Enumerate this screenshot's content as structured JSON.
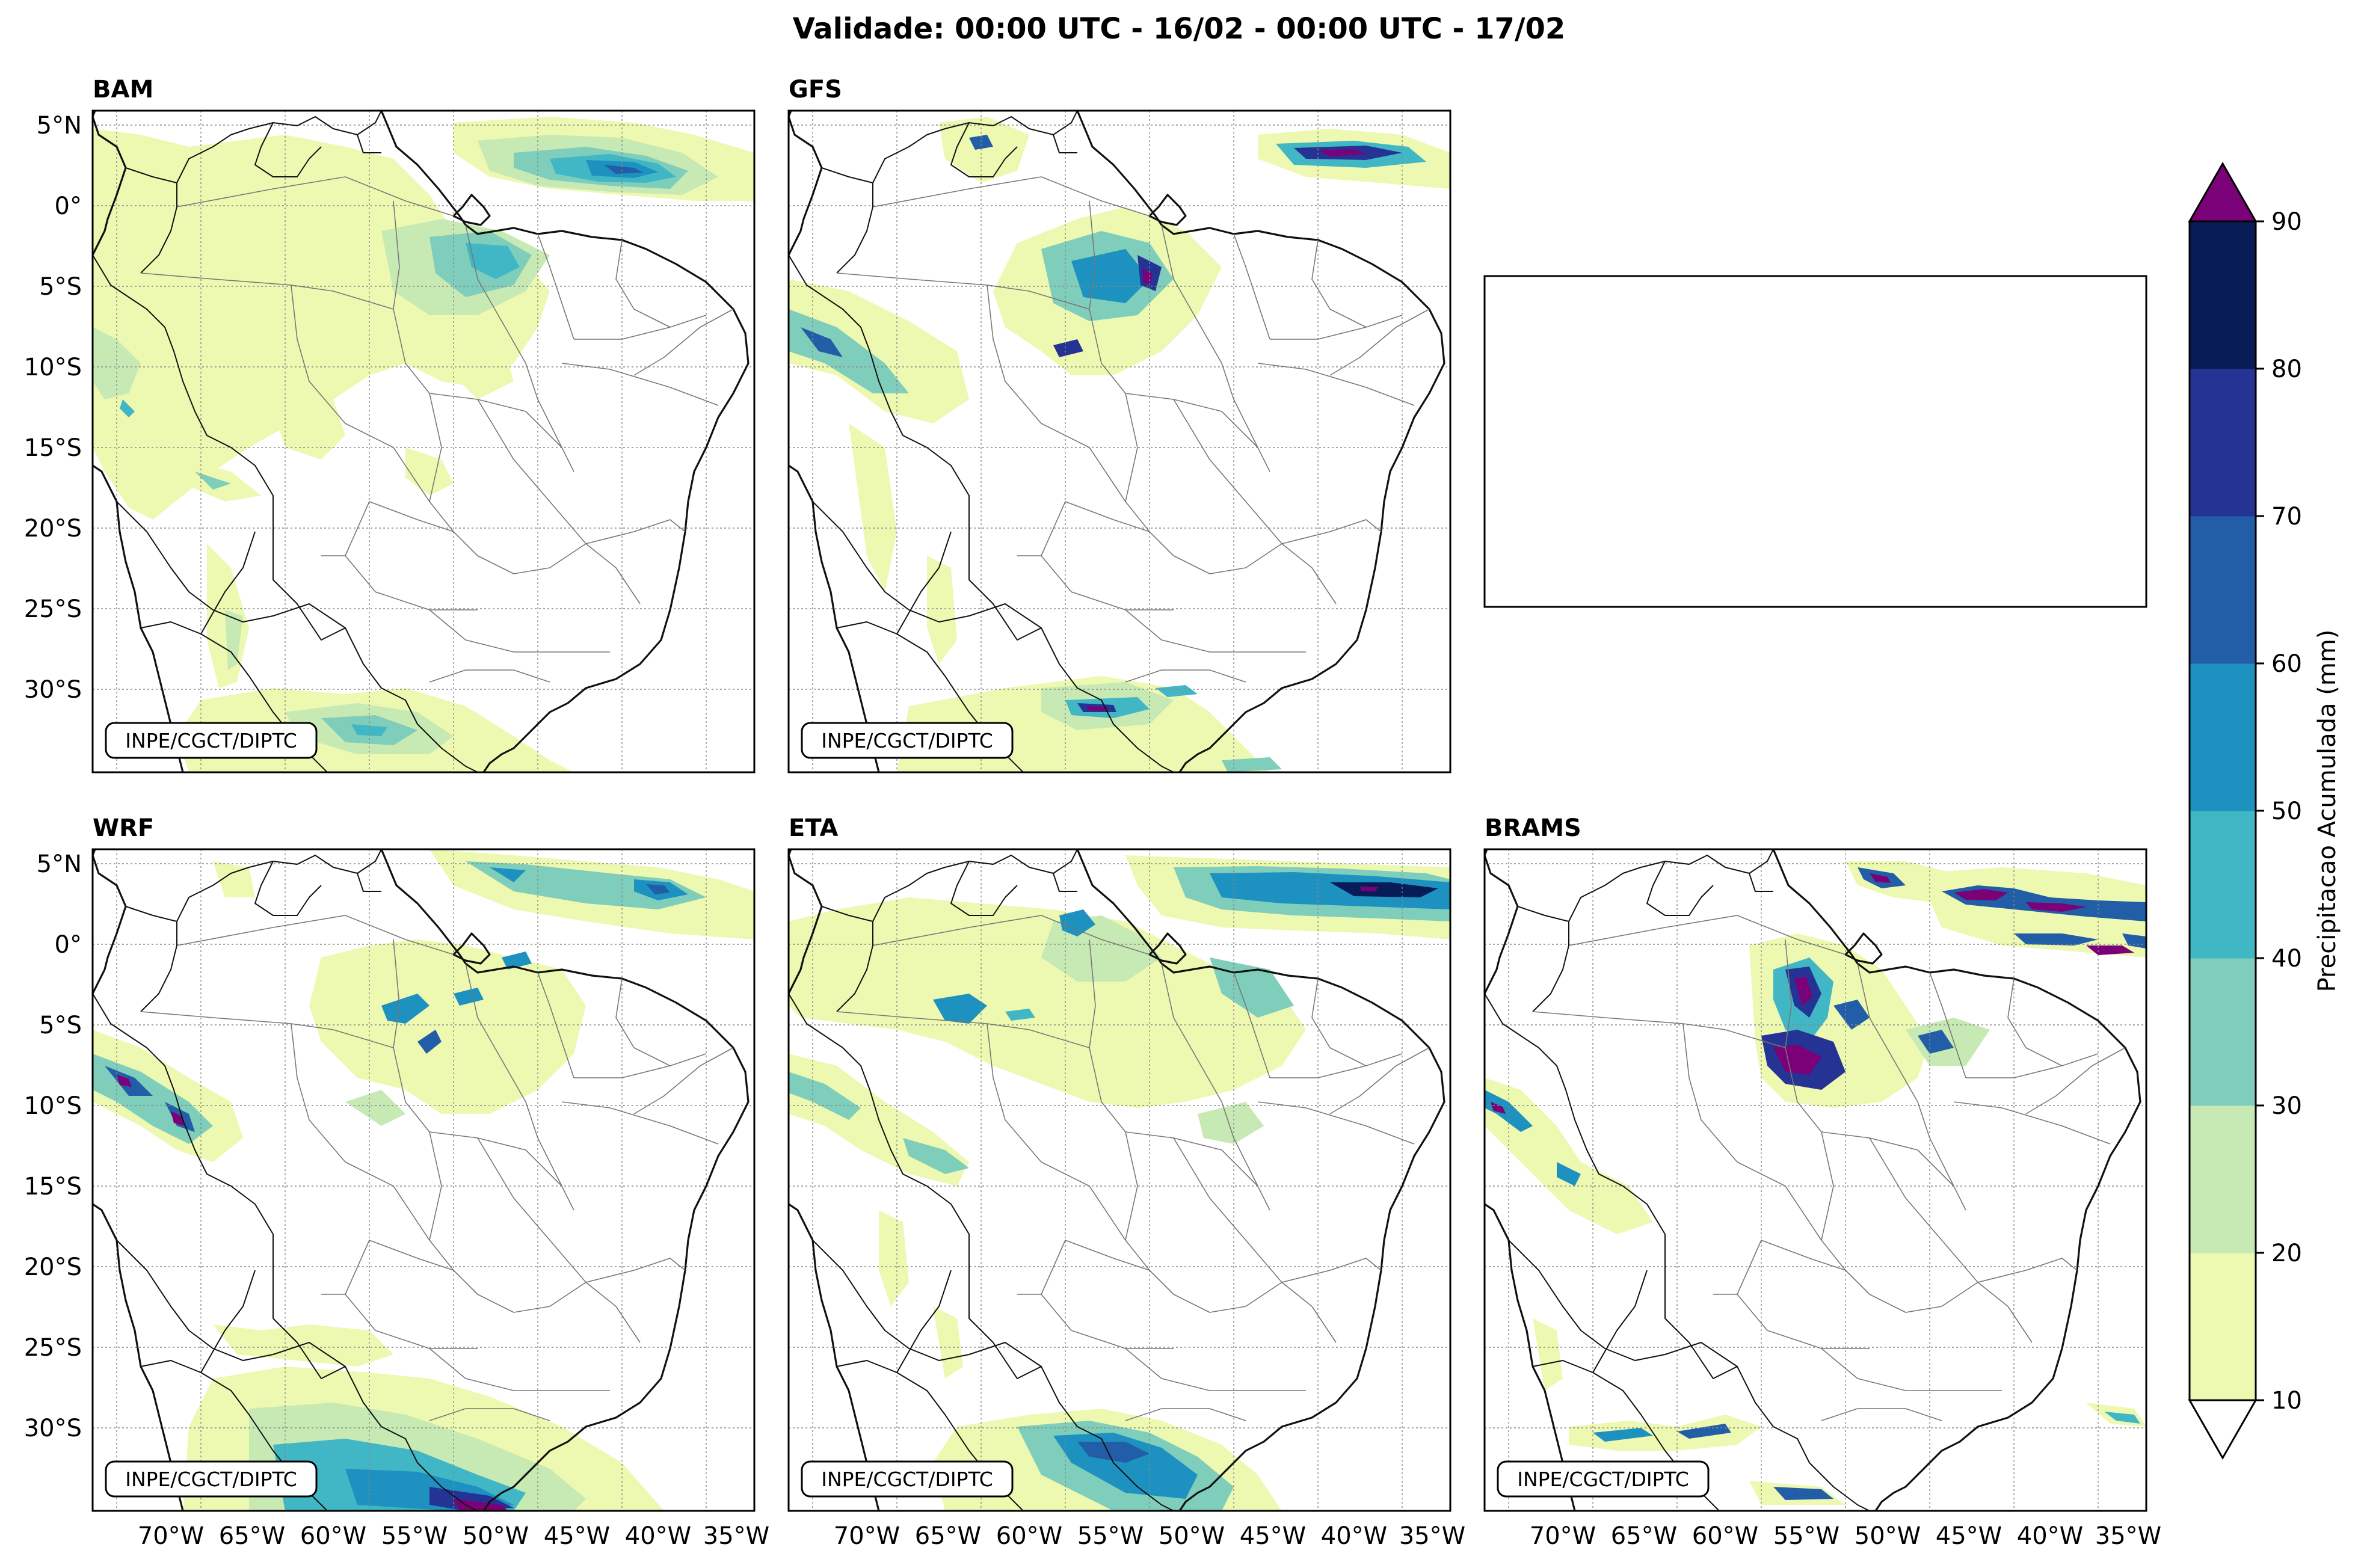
{
  "title": "Validade: 00:00 UTC - 16/02 - 00:00 UTC - 17/02",
  "credit": "INPE/CGCT/DIPTC",
  "lon_ticks": [
    "70°W",
    "65°W",
    "60°W",
    "55°W",
    "50°W",
    "45°W",
    "40°W",
    "35°W"
  ],
  "lat_ticks": [
    "5°N",
    "0°",
    "5°S",
    "10°S",
    "15°S",
    "20°S",
    "25°S",
    "30°S"
  ],
  "panels": [
    {
      "id": "bam",
      "label": "BAM"
    },
    {
      "id": "gfs",
      "label": "GFS"
    },
    {
      "id": "empty",
      "label": ""
    },
    {
      "id": "wrf",
      "label": "WRF"
    },
    {
      "id": "eta",
      "label": "ETA"
    },
    {
      "id": "brams",
      "label": "BRAMS"
    }
  ],
  "colorbar": {
    "label": "Precipitacao Acumulada (mm)",
    "ticks": [
      "10",
      "20",
      "30",
      "40",
      "50",
      "60",
      "70",
      "80",
      "90"
    ],
    "colors": [
      "#edf8b1",
      "#c7e9b4",
      "#7fcdbb",
      "#41b6c4",
      "#1d91c0",
      "#225ea8",
      "#253494",
      "#081d58"
    ],
    "over_color": "#7a0177",
    "under_color": "#ffffff"
  },
  "colors": {
    "c10": "#edf8b1",
    "c20": "#c7e9b4",
    "c30": "#7fcdbb",
    "c40": "#41b6c4",
    "c50": "#1d91c0",
    "c60": "#225ea8",
    "c70": "#253494",
    "c80": "#081d58",
    "c90": "#7a0177"
  }
}
